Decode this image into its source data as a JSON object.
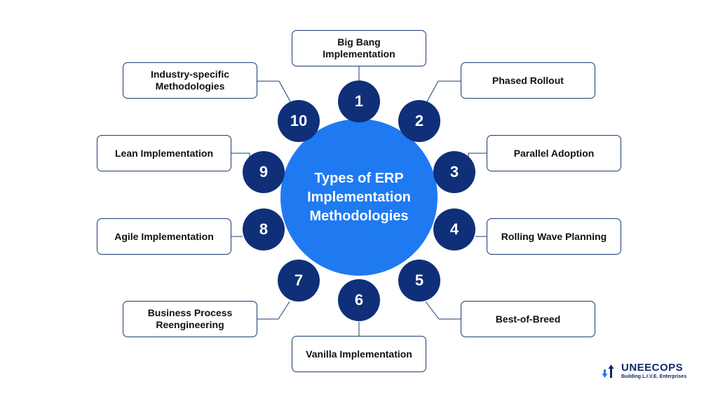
{
  "title": "Types of ERP Implementation Methodologies",
  "colors": {
    "center": "#1f7af2",
    "circle": "#0f2f78",
    "border": "#1c3a72"
  },
  "items": [
    {
      "number": "1",
      "label": "Big Bang Implementation"
    },
    {
      "number": "2",
      "label": "Phased Rollout"
    },
    {
      "number": "3",
      "label": "Parallel Adoption"
    },
    {
      "number": "4",
      "label": "Rolling Wave Planning"
    },
    {
      "number": "5",
      "label": "Best-of-Breed"
    },
    {
      "number": "6",
      "label": "Vanilla Implementation"
    },
    {
      "number": "7",
      "label": "Business Process Reengineering"
    },
    {
      "number": "8",
      "label": "Agile Implementation"
    },
    {
      "number": "9",
      "label": "Lean Implementation"
    },
    {
      "number": "10",
      "label": "Industry-specific Methodologies"
    }
  ],
  "logo": {
    "name": "UNEECOPS",
    "tagline": "Building L.I.V.E. Enterprises",
    "icon": "up-down-arrows-icon"
  }
}
